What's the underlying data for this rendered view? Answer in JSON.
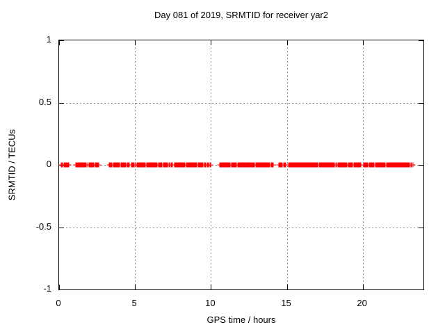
{
  "chart_data": {
    "type": "scatter",
    "title": "Day 081 of 2019, SRMTID for receiver yar2",
    "xlabel": "GPS time / hours",
    "ylabel": "SRMTID / TECUs",
    "xlim": [
      0,
      24
    ],
    "ylim": [
      -1,
      1
    ],
    "xticks": [
      0,
      5,
      10,
      15,
      20
    ],
    "yticks": [
      1,
      0.5,
      0,
      -0.5,
      -1
    ],
    "grid": "dashed",
    "grid_color": "#8c8c8c",
    "border_color": "#000000",
    "legend": "none",
    "marker": "plus",
    "marker_color": "#ff0000",
    "series": [
      {
        "name": "SRMTID",
        "y_value": 0,
        "clusters_hours": [
          [
            0.15,
            0.3,
            4
          ],
          [
            0.34,
            0.46,
            4
          ],
          [
            0.52,
            0.64,
            4
          ],
          [
            1.1,
            1.2,
            3
          ],
          [
            1.22,
            1.42,
            9
          ],
          [
            1.46,
            1.6,
            4
          ],
          [
            1.64,
            1.79,
            4
          ],
          [
            1.9,
            2.05,
            4
          ],
          [
            2.1,
            2.36,
            6
          ],
          [
            2.44,
            2.62,
            5
          ],
          [
            3.28,
            3.5,
            6
          ],
          [
            3.55,
            3.75,
            5
          ],
          [
            3.8,
            3.98,
            5
          ],
          [
            4.08,
            4.4,
            9
          ],
          [
            4.5,
            4.64,
            4
          ],
          [
            4.76,
            5.02,
            6
          ],
          [
            5.15,
            5.4,
            7
          ],
          [
            5.45,
            5.7,
            6
          ],
          [
            5.75,
            6.0,
            6
          ],
          [
            6.02,
            6.45,
            12
          ],
          [
            6.55,
            6.8,
            6
          ],
          [
            6.85,
            7.16,
            7
          ],
          [
            7.25,
            7.46,
            5
          ],
          [
            7.62,
            7.85,
            6
          ],
          [
            7.88,
            8.1,
            8
          ],
          [
            8.12,
            8.3,
            6
          ],
          [
            8.4,
            8.7,
            8
          ],
          [
            8.75,
            9.06,
            8
          ],
          [
            9.15,
            9.45,
            7
          ],
          [
            9.5,
            9.67,
            4
          ],
          [
            9.76,
            9.97,
            5
          ],
          [
            10.6,
            11.0,
            11
          ],
          [
            11.05,
            11.27,
            6
          ],
          [
            11.35,
            11.7,
            9
          ],
          [
            11.75,
            12.04,
            8
          ],
          [
            12.05,
            12.5,
            13
          ],
          [
            12.55,
            12.88,
            10
          ],
          [
            12.96,
            13.4,
            13
          ],
          [
            13.45,
            13.87,
            12
          ],
          [
            13.95,
            14.09,
            4
          ],
          [
            14.48,
            14.72,
            6
          ],
          [
            14.78,
            14.93,
            4
          ],
          [
            15.1,
            15.55,
            13
          ],
          [
            15.6,
            16.15,
            15
          ],
          [
            16.23,
            16.7,
            13
          ],
          [
            16.75,
            17.06,
            9
          ],
          [
            17.15,
            17.75,
            17
          ],
          [
            17.8,
            18.07,
            8
          ],
          [
            18.1,
            18.28,
            4
          ],
          [
            18.38,
            18.7,
            9
          ],
          [
            18.75,
            18.98,
            6
          ],
          [
            19.07,
            19.35,
            7
          ],
          [
            19.4,
            19.7,
            7
          ],
          [
            19.75,
            19.9,
            4
          ],
          [
            20.06,
            20.35,
            8
          ],
          [
            20.42,
            20.75,
            9
          ],
          [
            20.82,
            21.1,
            7
          ],
          [
            21.15,
            21.49,
            9
          ],
          [
            21.58,
            23.08,
            40
          ],
          [
            23.17,
            23.3,
            3
          ]
        ]
      }
    ]
  }
}
